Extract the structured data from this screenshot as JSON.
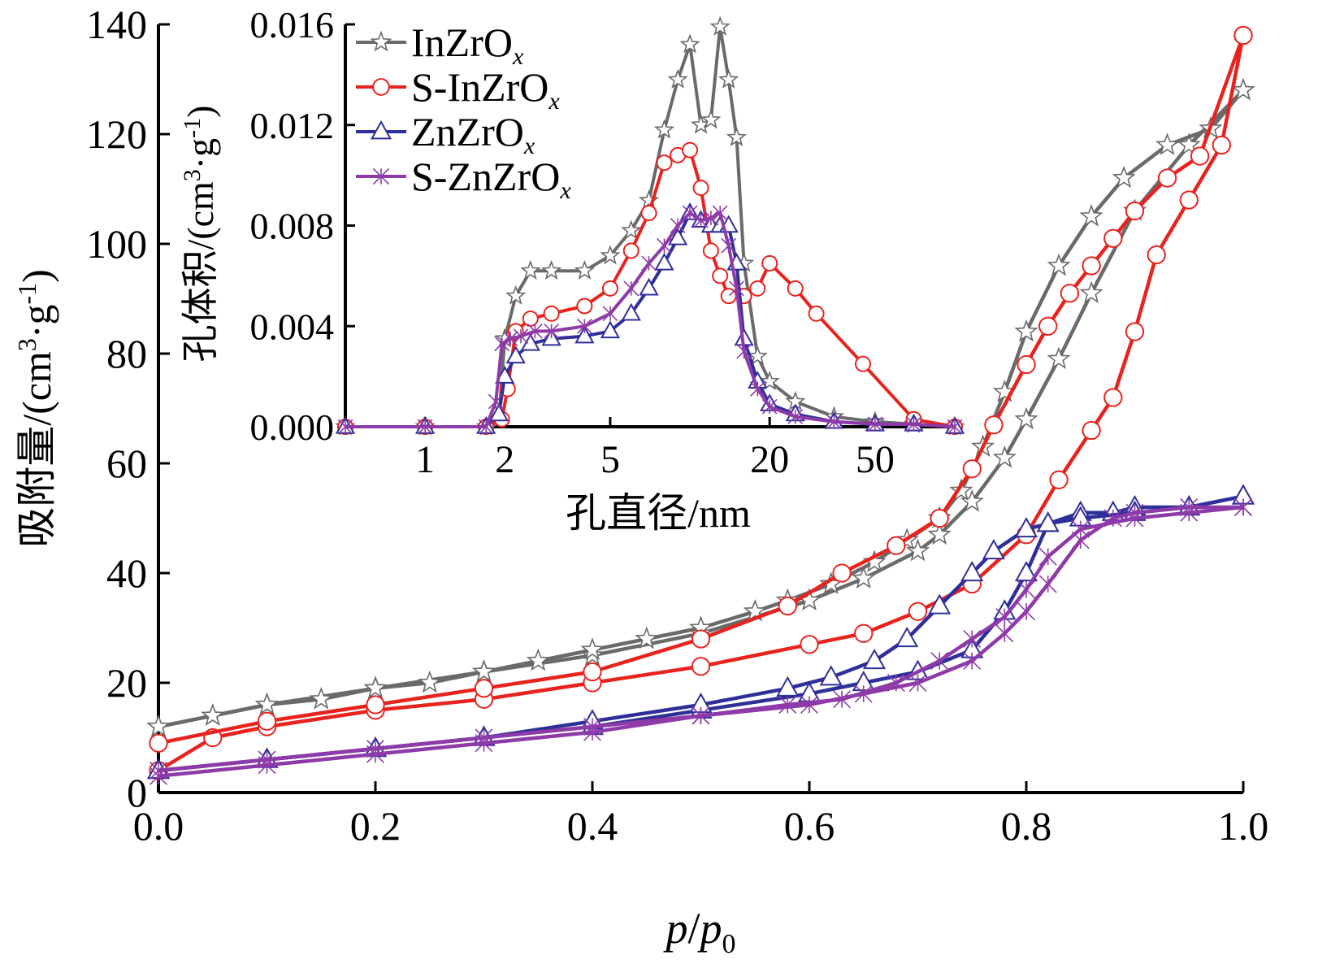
{
  "chart_data": [
    {
      "id": "main",
      "type": "line",
      "xlabel_parts": [
        "p",
        "/",
        "p",
        "0"
      ],
      "ylabel_parts": [
        "吸附量/(cm",
        "3",
        "·g",
        "-1",
        ")"
      ],
      "xlim": [
        0,
        1.0
      ],
      "ylim": [
        0,
        140
      ],
      "xticks": [
        0.0,
        0.2,
        0.4,
        0.6,
        0.8,
        1.0
      ],
      "xtick_labels": [
        "0.0",
        "0.2",
        "0.4",
        "0.6",
        "0.8",
        "1.0"
      ],
      "yticks": [
        0,
        20,
        40,
        60,
        80,
        100,
        120,
        140
      ],
      "ytick_labels": [
        "0",
        "20",
        "40",
        "60",
        "80",
        "100",
        "120",
        "140"
      ],
      "series": [
        {
          "color": "#6a6a6a",
          "marker": "star",
          "adsorption": {
            "x": [
              0.0,
              0.05,
              0.1,
              0.2,
              0.3,
              0.4,
              0.5,
              0.6,
              0.65,
              0.7,
              0.72,
              0.75,
              0.78,
              0.8,
              0.83,
              0.86,
              0.9,
              0.95,
              1.0
            ],
            "y": [
              12,
              14,
              16,
              19,
              22,
              25,
              29,
              35,
              39,
              44,
              47,
              53,
              61,
              68,
              79,
              91,
              106,
              118,
              128
            ]
          },
          "desorption": {
            "x": [
              1.0,
              0.97,
              0.93,
              0.89,
              0.86,
              0.83,
              0.8,
              0.78,
              0.76,
              0.74,
              0.72,
              0.69,
              0.66,
              0.62,
              0.58,
              0.55,
              0.5,
              0.45,
              0.4,
              0.35,
              0.3,
              0.25,
              0.2,
              0.15,
              0.1,
              0.05,
              0.0
            ],
            "y": [
              128,
              121,
              118,
              112,
              105,
              96,
              84,
              73,
              63,
              55,
              50,
              46,
              42,
              38,
              35,
              33,
              30,
              28,
              26,
              24,
              22,
              20,
              19,
              17,
              16,
              14,
              12
            ]
          }
        },
        {
          "color": "#e8231e",
          "marker": "circle",
          "adsorption": {
            "x": [
              0.0,
              0.05,
              0.1,
              0.2,
              0.3,
              0.4,
              0.5,
              0.6,
              0.65,
              0.7,
              0.75,
              0.8,
              0.83,
              0.86,
              0.88,
              0.9,
              0.92,
              0.95,
              0.98,
              1.0
            ],
            "y": [
              4,
              10,
              12,
              15,
              17,
              20,
              23,
              27,
              29,
              33,
              38,
              47,
              57,
              66,
              72,
              84,
              98,
              108,
              118,
              138
            ]
          },
          "desorption": {
            "x": [
              1.0,
              0.96,
              0.93,
              0.9,
              0.88,
              0.86,
              0.84,
              0.82,
              0.8,
              0.77,
              0.75,
              0.72,
              0.68,
              0.63,
              0.58,
              0.5,
              0.4,
              0.3,
              0.2,
              0.1,
              0.0
            ],
            "y": [
              138,
              116,
              112,
              106,
              101,
              96,
              91,
              85,
              78,
              67,
              59,
              50,
              45,
              40,
              34,
              28,
              22,
              19,
              16,
              13,
              9
            ]
          }
        },
        {
          "color": "#2f2f9a",
          "marker": "triangle",
          "adsorption": {
            "x": [
              0.0,
              0.1,
              0.2,
              0.3,
              0.4,
              0.5,
              0.6,
              0.65,
              0.7,
              0.75,
              0.78,
              0.8,
              0.82,
              0.85,
              0.88,
              0.9,
              0.95,
              1.0
            ],
            "y": [
              4,
              6,
              8,
              10,
              12,
              15,
              18,
              20,
              22,
              26,
              33,
              40,
              49,
              51,
              51,
              52,
              52,
              54
            ]
          },
          "desorption": {
            "x": [
              1.0,
              0.95,
              0.9,
              0.85,
              0.82,
              0.8,
              0.77,
              0.75,
              0.72,
              0.69,
              0.66,
              0.62,
              0.58,
              0.5,
              0.4,
              0.3,
              0.2,
              0.1,
              0.0
            ],
            "y": [
              54,
              52,
              51,
              50,
              49,
              48,
              44,
              40,
              34,
              28,
              24,
              21,
              19,
              16,
              13,
              10,
              8,
              6,
              4
            ]
          }
        },
        {
          "color": "#8e3aa8",
          "marker": "cross",
          "adsorption": {
            "x": [
              0.0,
              0.1,
              0.2,
              0.3,
              0.4,
              0.5,
              0.6,
              0.65,
              0.7,
              0.75,
              0.78,
              0.8,
              0.82,
              0.85,
              0.88,
              0.9,
              0.95,
              1.0
            ],
            "y": [
              3,
              5,
              7,
              9,
              11,
              14,
              16,
              18,
              20,
              24,
              29,
              33,
              38,
              46,
              50,
              51,
              52,
              52
            ]
          },
          "desorption": {
            "x": [
              1.0,
              0.95,
              0.9,
              0.85,
              0.82,
              0.8,
              0.78,
              0.75,
              0.72,
              0.68,
              0.63,
              0.58,
              0.5,
              0.4,
              0.3,
              0.2,
              0.1,
              0.0
            ],
            "y": [
              52,
              51,
              50,
              48,
              43,
              37,
              32,
              28,
              24,
              20,
              17,
              16,
              14,
              12,
              10,
              8,
              6,
              4
            ]
          }
        }
      ]
    },
    {
      "id": "inset",
      "type": "line",
      "xscale": "log",
      "xlabel": "孔直径/nm",
      "ylabel_parts": [
        "孔体积/(cm",
        "3",
        "·g",
        "-1",
        ")"
      ],
      "xlim": [
        0.5,
        100
      ],
      "ylim": [
        0,
        0.016
      ],
      "xticks": [
        1,
        2,
        5,
        20,
        50
      ],
      "xtick_labels": [
        "1",
        "2",
        "5",
        "20",
        "50"
      ],
      "yticks": [
        0,
        0.004,
        0.008,
        0.012,
        0.016
      ],
      "ytick_labels": [
        "0.000",
        "0.004",
        "0.008",
        "0.012",
        "0.016"
      ],
      "legend_position": "top-left",
      "series": [
        {
          "name_parts": [
            "InZrO",
            "x"
          ],
          "color": "#6a6a6a",
          "marker": "star",
          "x": [
            0.5,
            1,
            1.7,
            1.9,
            2.0,
            2.2,
            2.5,
            3,
            4,
            5,
            6,
            7,
            8,
            9,
            10,
            11,
            12,
            13,
            14,
            15,
            16,
            18,
            20,
            25,
            35,
            50,
            70,
            100
          ],
          "y": [
            0,
            0,
            0,
            0.0003,
            0.0035,
            0.0052,
            0.0062,
            0.0062,
            0.0062,
            0.0068,
            0.0078,
            0.009,
            0.0118,
            0.0138,
            0.0152,
            0.012,
            0.0122,
            0.0159,
            0.0138,
            0.0115,
            0.0065,
            0.0028,
            0.0018,
            0.001,
            0.0004,
            0.0002,
            0.0001,
            0
          ]
        },
        {
          "name_parts": [
            "S-InZrO",
            "x"
          ],
          "color": "#e8231e",
          "marker": "circle",
          "x": [
            0.5,
            1,
            1.7,
            1.95,
            2.05,
            2.2,
            2.5,
            3,
            4,
            5,
            6,
            7,
            8,
            9,
            10,
            11,
            12,
            13,
            14,
            16,
            18,
            20,
            25,
            30,
            45,
            70,
            100
          ],
          "y": [
            0,
            0,
            0,
            0.0003,
            0.0015,
            0.0038,
            0.0043,
            0.0045,
            0.0048,
            0.0055,
            0.007,
            0.0085,
            0.0105,
            0.0108,
            0.011,
            0.0095,
            0.007,
            0.006,
            0.0052,
            0.0052,
            0.0055,
            0.0065,
            0.0055,
            0.0045,
            0.0025,
            0.0003,
            0
          ]
        },
        {
          "name_parts": [
            "ZnZrO",
            "x"
          ],
          "color": "#2f2f9a",
          "marker": "triangle",
          "x": [
            0.5,
            1,
            1.7,
            1.9,
            2.0,
            2.2,
            2.5,
            3,
            4,
            5,
            6,
            7,
            8,
            9,
            10,
            11,
            12,
            13,
            14,
            15,
            16,
            18,
            20,
            25,
            35,
            50,
            70,
            100
          ],
          "y": [
            0,
            0,
            0,
            0.0005,
            0.002,
            0.0028,
            0.0033,
            0.0035,
            0.0036,
            0.0038,
            0.0045,
            0.0055,
            0.0065,
            0.0075,
            0.0085,
            0.0082,
            0.008,
            0.008,
            0.008,
            0.0065,
            0.0035,
            0.0018,
            0.0009,
            0.0005,
            0.0002,
            0.0001,
            0.0001,
            0
          ]
        },
        {
          "name_parts": [
            "S-ZnZrO",
            "x"
          ],
          "color": "#8e3aa8",
          "marker": "cross",
          "x": [
            0.5,
            1,
            1.7,
            1.85,
            1.95,
            2.1,
            2.3,
            2.6,
            3,
            4,
            5,
            6,
            7,
            8,
            9,
            10,
            11,
            12,
            13,
            14,
            15,
            16,
            18,
            20,
            25,
            35,
            50,
            70,
            100
          ],
          "y": [
            0,
            0,
            0,
            0.001,
            0.0033,
            0.0035,
            0.0036,
            0.0038,
            0.0038,
            0.004,
            0.0045,
            0.0055,
            0.0065,
            0.0072,
            0.008,
            0.0085,
            0.0082,
            0.0083,
            0.0085,
            0.0072,
            0.0055,
            0.003,
            0.0015,
            0.0008,
            0.0004,
            0.0002,
            0.0001,
            0.0001,
            0
          ]
        }
      ]
    }
  ]
}
